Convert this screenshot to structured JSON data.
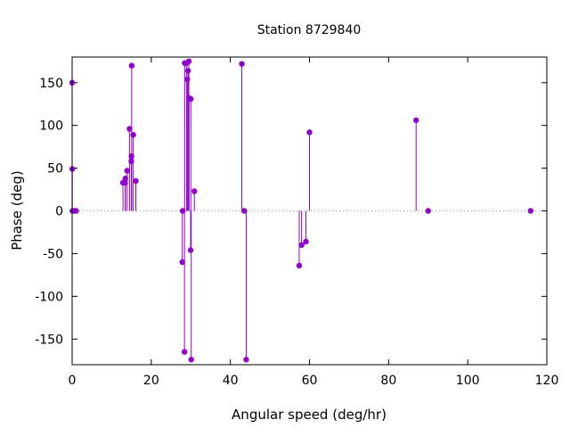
{
  "chart_data": {
    "type": "scatter",
    "style": "impulses-with-points",
    "title": "Station 8729840",
    "xlabel": "Angular speed (deg/hr)",
    "ylabel": "Phase (deg)",
    "xlim": [
      0,
      120
    ],
    "ylim": [
      -180,
      180
    ],
    "xticks": [
      0,
      20,
      40,
      60,
      80,
      100,
      120
    ],
    "yticks": [
      -150,
      -100,
      -50,
      0,
      50,
      100,
      150
    ],
    "grid": false,
    "legend": "none",
    "zero_line": true,
    "color": "#9400d3",
    "series": [
      {
        "points": [
          {
            "x": 0.0,
            "y": 150
          },
          {
            "x": 0.04,
            "y": 49
          },
          {
            "x": 0.08,
            "y": 0
          },
          {
            "x": 0.5,
            "y": 0
          },
          {
            "x": 1.0,
            "y": 0
          },
          {
            "x": 12.85,
            "y": 33
          },
          {
            "x": 13.4,
            "y": 33
          },
          {
            "x": 13.45,
            "y": 38
          },
          {
            "x": 13.9,
            "y": 47
          },
          {
            "x": 14.5,
            "y": 96
          },
          {
            "x": 14.95,
            "y": 58
          },
          {
            "x": 15.0,
            "y": 64
          },
          {
            "x": 15.05,
            "y": 170
          },
          {
            "x": 15.45,
            "y": 89
          },
          {
            "x": 16.1,
            "y": 35
          },
          {
            "x": 27.85,
            "y": -60
          },
          {
            "x": 27.95,
            "y": 0
          },
          {
            "x": 28.4,
            "y": -165
          },
          {
            "x": 28.45,
            "y": 173
          },
          {
            "x": 28.95,
            "y": 173
          },
          {
            "x": 29.1,
            "y": 154
          },
          {
            "x": 29.3,
            "y": 164
          },
          {
            "x": 29.5,
            "y": 175
          },
          {
            "x": 29.55,
            "y": 132
          },
          {
            "x": 29.95,
            "y": -46
          },
          {
            "x": 30.0,
            "y": 131
          },
          {
            "x": 30.1,
            "y": -174
          },
          {
            "x": 30.9,
            "y": 23
          },
          {
            "x": 42.9,
            "y": 172
          },
          {
            "x": 43.5,
            "y": 0
          },
          {
            "x": 44.0,
            "y": -174
          },
          {
            "x": 57.4,
            "y": -64
          },
          {
            "x": 58.0,
            "y": -40
          },
          {
            "x": 59.1,
            "y": -36
          },
          {
            "x": 60.0,
            "y": 92
          },
          {
            "x": 86.95,
            "y": 106
          },
          {
            "x": 90.0,
            "y": 0
          },
          {
            "x": 115.9,
            "y": 0
          }
        ]
      }
    ]
  }
}
